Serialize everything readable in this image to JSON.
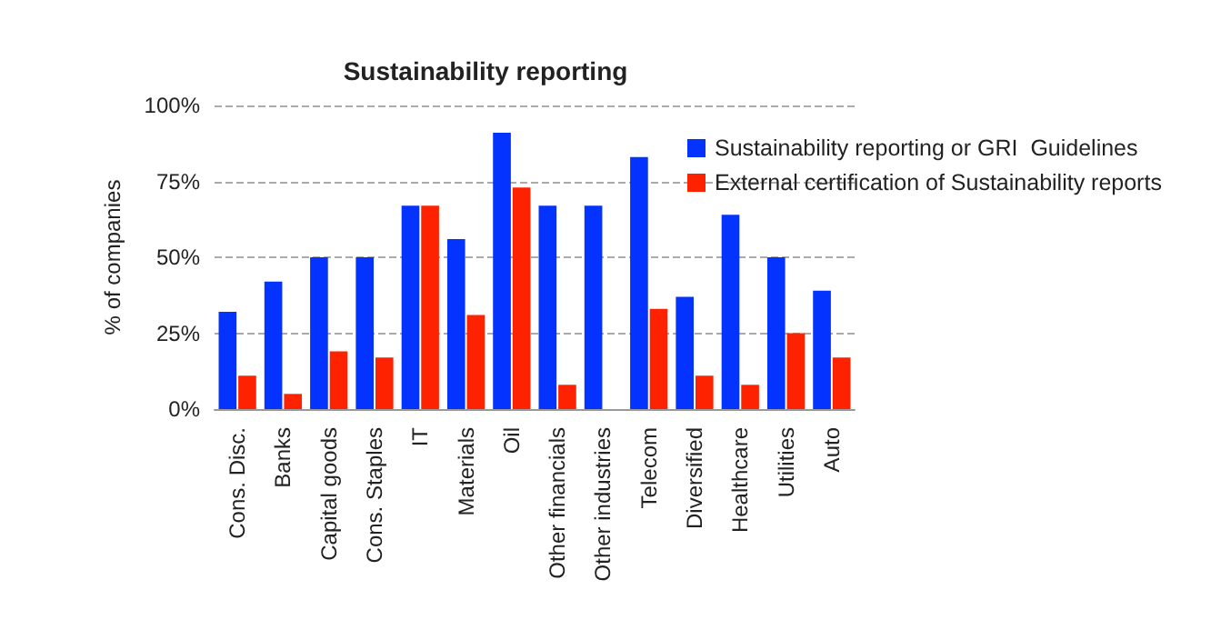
{
  "chart_data": {
    "type": "bar",
    "title": "Sustainability reporting",
    "ylabel": "% of companies",
    "categories": [
      "Cons. Disc.",
      "Banks",
      "Capital goods",
      "Cons. Staples",
      "IT",
      "Materials",
      "Oil",
      "Other financials",
      "Other industries",
      "Telecom",
      "Diversified",
      "Healthcare",
      "Utilities",
      "Auto"
    ],
    "series": [
      {
        "name": "Sustainability reporting or GRI  Guidelines",
        "color": "#0433ff",
        "values": [
          32,
          42,
          50,
          50,
          67,
          56,
          91,
          67,
          67,
          83,
          37,
          64,
          50,
          39
        ]
      },
      {
        "name": "External certification of Sustainability reports",
        "color": "#ff2200",
        "values": [
          11,
          5,
          19,
          17,
          67,
          31,
          73,
          8,
          0,
          33,
          11,
          8,
          25,
          17
        ]
      }
    ],
    "ylim": [
      0,
      100
    ],
    "yticks": [
      {
        "value": 0,
        "label": "0%"
      },
      {
        "value": 25,
        "label": "25%"
      },
      {
        "value": 50,
        "label": "50%"
      },
      {
        "value": 75,
        "label": "75%"
      },
      {
        "value": 100,
        "label": "100%"
      }
    ],
    "grid": "y",
    "legend": "top right"
  }
}
